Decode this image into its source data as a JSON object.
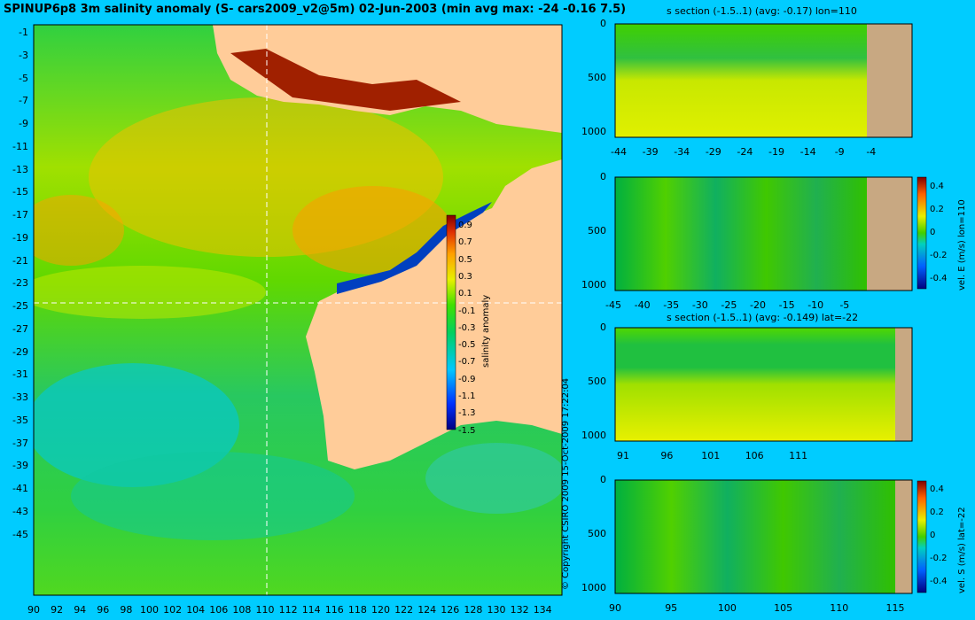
{
  "colors": {
    "background": "#00ccff",
    "land": "#ffcc99",
    "land_section": "#c8a882",
    "guide": "#ffffff"
  },
  "map": {
    "title": "SPINUP6p8 3m salinity anomaly (S- cars2009_v2@5m) 02-Jun-2003 (min avg max: -24 -0.16 7.5)",
    "yticks": [
      "-1",
      "-3",
      "-5",
      "-7",
      "-9",
      "-11",
      "-13",
      "-15",
      "-17",
      "-19",
      "-21",
      "-23",
      "-25",
      "-27",
      "-29",
      "-31",
      "-33",
      "-35",
      "-37",
      "-39",
      "-41",
      "-43",
      "-45"
    ],
    "xticks": [
      "90",
      "92",
      "94",
      "96",
      "98",
      "100",
      "102",
      "104",
      "106",
      "108",
      "110",
      "112",
      "114",
      "116",
      "118",
      "120",
      "122",
      "124",
      "126",
      "128",
      "130",
      "132",
      "134"
    ],
    "colorbar_ticks": [
      "0.9",
      "0.7",
      "0.5",
      "0.3",
      "0.1",
      "-0.1",
      "-0.3",
      "-0.5",
      "-0.7",
      "-0.9",
      "-1.1",
      "-1.3",
      "-1.5"
    ],
    "colorbar_label": "salinity anomaly",
    "copyright": "© Copyright CSIRO 2009   15-Oct-2009 17:22:04"
  },
  "panels": {
    "p1": {
      "title": "s section (-1.5..1) (avg: -0.17) lon=110",
      "yticks": [
        "0",
        "500",
        "1000"
      ],
      "xticks": [
        "-44",
        "-39",
        "-34",
        "-29",
        "-24",
        "-19",
        "-14",
        "-9",
        "-4"
      ]
    },
    "p2": {
      "title": "",
      "yticks": [
        "0",
        "500",
        "1000"
      ],
      "xticks": [
        "-45",
        "-40",
        "-35",
        "-30",
        "-25",
        "-20",
        "-15",
        "-10",
        "-5"
      ],
      "colorbar_ticks": [
        "0.4",
        "0.2",
        "0",
        "-0.2",
        "-0.4"
      ],
      "colorbar_label": "vel. E (m/s) lon=110"
    },
    "p3": {
      "title": "s section (-1.5..1) (avg: -0.149) lat=-22",
      "yticks": [
        "0",
        "500",
        "1000"
      ],
      "xticks": [
        "91",
        "96",
        "101",
        "106",
        "111"
      ]
    },
    "p4": {
      "title": "",
      "yticks": [
        "0",
        "500",
        "1000"
      ],
      "xticks": [
        "90",
        "95",
        "100",
        "105",
        "110",
        "115"
      ],
      "colorbar_ticks": [
        "0.4",
        "0.2",
        "0",
        "-0.2",
        "-0.4"
      ],
      "colorbar_label": "vel. S (m/s) lat=-22"
    }
  },
  "chart_data": [
    {
      "type": "heatmap",
      "title": "SPINUP6p8 3m salinity anomaly (S- cars2009_v2@5m) 02-Jun-2003 (min avg max: -24 -0.16 7.5)",
      "xlim": [
        90,
        135
      ],
      "ylim": [
        -45,
        0
      ],
      "clim": [
        -1.5,
        1
      ],
      "colorbar_label": "salinity anomaly",
      "guides": {
        "lon": 110,
        "lat": -22
      }
    },
    {
      "type": "heatmap",
      "title": "s section (-1.5..1) (avg: -0.17) lon=110",
      "xlim": [
        -45,
        -2
      ],
      "ylim": [
        1050,
        0
      ],
      "clim": [
        -1.5,
        1
      ]
    },
    {
      "type": "heatmap",
      "title": "",
      "xlim": [
        -45,
        -2
      ],
      "ylim": [
        1050,
        0
      ],
      "clim": [
        -0.45,
        0.45
      ],
      "colorbar_label": "vel. E (m/s) lon=110"
    },
    {
      "type": "heatmap",
      "title": "s section (-1.5..1) (avg: -0.149) lat=-22",
      "xlim": [
        89,
        115
      ],
      "ylim": [
        1050,
        0
      ],
      "clim": [
        -1.5,
        1
      ]
    },
    {
      "type": "heatmap",
      "title": "",
      "xlim": [
        90,
        115
      ],
      "ylim": [
        1050,
        0
      ],
      "clim": [
        -0.45,
        0.45
      ],
      "colorbar_label": "vel. S (m/s) lat=-22"
    }
  ]
}
